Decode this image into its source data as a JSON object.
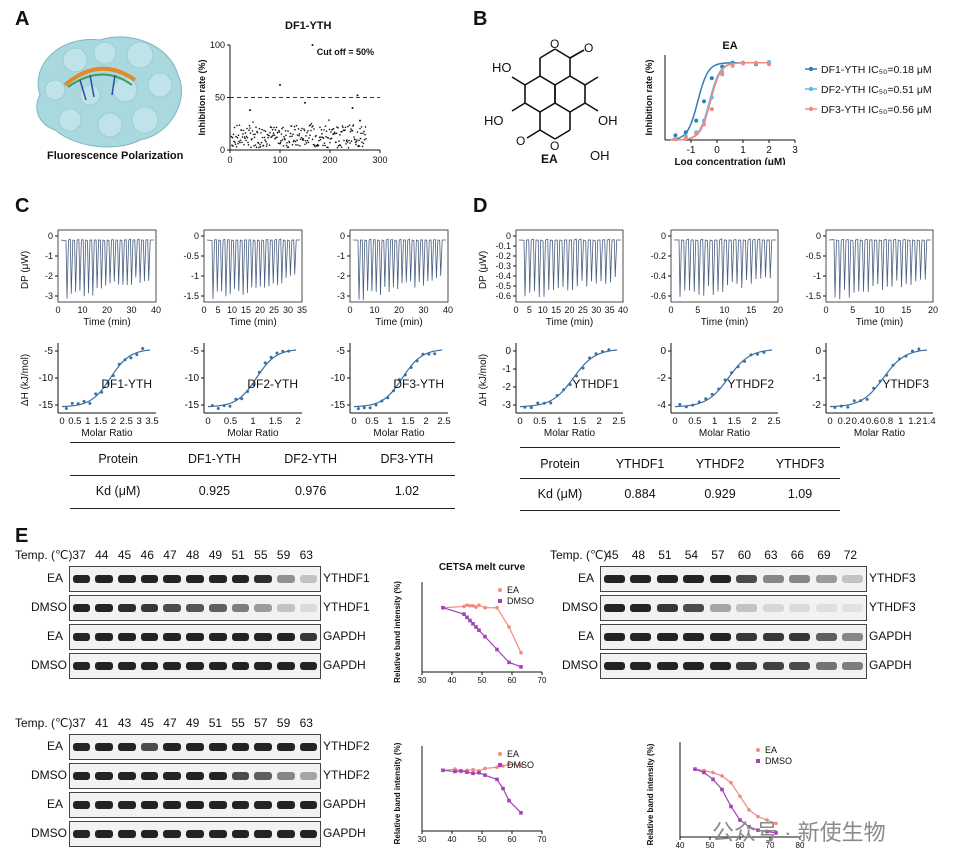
{
  "panels": {
    "a": "A",
    "b": "B",
    "c": "C",
    "d": "D",
    "e": "E"
  },
  "panelA": {
    "caption": "Fluorescence Polarization",
    "chart_data": {
      "type": "scatter",
      "title": "DF1-YTH",
      "ylabel": "Inhibition rate (%)",
      "xlabel": "",
      "xlim": [
        0,
        300
      ],
      "ylim": [
        0,
        100
      ],
      "x_ticks": [
        "0",
        "100",
        "200",
        "300"
      ],
      "y_ticks": [
        "0",
        "50",
        "100"
      ],
      "annotation": "Cut off = 50%",
      "cutoff": 50,
      "outliers": [
        [
          40,
          38
        ],
        [
          100,
          62
        ],
        [
          150,
          45
        ],
        [
          165,
          100
        ],
        [
          245,
          40
        ],
        [
          255,
          52
        ],
        [
          260,
          28
        ]
      ],
      "points_range": "n≈270 values between 0 and 30"
    }
  },
  "panelB": {
    "molecule_label": "EA",
    "groups": [
      "HO",
      "HO",
      "OH",
      "OH",
      "O",
      "O",
      "O",
      "O"
    ],
    "chart_data": {
      "type": "line",
      "title": "EA",
      "xlabel": "Log concentration (μM)",
      "ylabel": "Inhibition rate (%)",
      "xlim": [
        -2,
        3
      ],
      "x_ticks": [
        "-1",
        "0",
        "1",
        "2",
        "3"
      ],
      "series": [
        {
          "name": "DF1-YTH IC₅₀=0.18 μM",
          "color": "#2f7fb5",
          "ic50_log": -0.74,
          "x": [
            -1.6,
            -1.2,
            -0.8,
            -0.5,
            -0.2,
            0.2,
            0.6,
            1.0,
            1.5,
            2.0
          ],
          "y": [
            6,
            10,
            25,
            50,
            80,
            95,
            100,
            100,
            98,
            100
          ]
        },
        {
          "name": "DF2-YTH IC₅₀=0.51 μM",
          "color": "#5bbde6",
          "ic50_log": -0.29,
          "x": [
            -1.6,
            -1.2,
            -0.8,
            -0.5,
            -0.2,
            0.2,
            0.6,
            1.0,
            1.5,
            2.0
          ],
          "y": [
            2,
            5,
            10,
            25,
            55,
            88,
            98,
            100,
            99,
            101
          ]
        },
        {
          "name": "DF3-YTH IC₅₀=0.56 μM",
          "color": "#ef8b80",
          "ic50_log": -0.25,
          "x": [
            -1.6,
            -1.2,
            -0.8,
            -0.5,
            -0.2,
            0.2,
            0.6,
            1.0,
            1.5,
            2.0
          ],
          "y": [
            1,
            3,
            8,
            20,
            40,
            85,
            96,
            99,
            100,
            98
          ]
        }
      ]
    }
  },
  "panelC": {
    "itc": [
      {
        "name": "DF1-YTH",
        "dp_ticks": [
          "0",
          "-1",
          "-2",
          "-3"
        ],
        "time_ticks": [
          "0",
          "10",
          "20",
          "30",
          "40"
        ],
        "time_label": "Time (min)",
        "mr_ticks": [
          "0",
          "0.5",
          "1",
          "1.5",
          "2",
          "2.5",
          "3",
          "3.5"
        ],
        "dh_ticks": [
          "-5",
          "-10",
          "-15"
        ],
        "mr_label": "Molar Ratio"
      },
      {
        "name": "DF2-YTH",
        "dp_ticks": [
          "0",
          "-0.5",
          "-1",
          "-1.5"
        ],
        "time_ticks": [
          "0",
          "5",
          "10",
          "15",
          "20",
          "25",
          "30",
          "35"
        ],
        "time_label": "Time (min)",
        "mr_ticks": [
          "0",
          "0.5",
          "1",
          "1.5",
          "2"
        ],
        "dh_ticks": [
          "-5",
          "-10",
          "-15"
        ],
        "mr_label": "Molar Ratio"
      },
      {
        "name": "DF3-YTH",
        "dp_ticks": [
          "0",
          "-1",
          "-2",
          "-3"
        ],
        "time_ticks": [
          "0",
          "10",
          "20",
          "30",
          "40"
        ],
        "time_label": "Time (min)",
        "mr_ticks": [
          "0",
          "0.5",
          "1",
          "1.5",
          "2",
          "2.5"
        ],
        "dh_ticks": [
          "-5",
          "-10",
          "-15"
        ],
        "mr_label": "Molar Ratio"
      }
    ],
    "dp_axis_label": "DP (μW)",
    "dh_axis_label": "ΔH (kJ/mol)",
    "table": {
      "headers": [
        "Protein",
        "DF1-YTH",
        "DF2-YTH",
        "DF3-YTH"
      ],
      "row_label": "Kd (μM)",
      "values": [
        "0.925",
        "0.976",
        "1.02"
      ]
    }
  },
  "panelD": {
    "itc": [
      {
        "name": "YTHDF1",
        "dp_ticks": [
          "0",
          "-0.1",
          "-0.2",
          "-0.3",
          "-0.4",
          "-0.5",
          "-0.6"
        ],
        "time_ticks": [
          "0",
          "5",
          "10",
          "15",
          "20",
          "25",
          "30",
          "35",
          "40"
        ],
        "time_label": "Time (min)",
        "mr_ticks": [
          "0",
          "0.5",
          "1",
          "1.5",
          "2",
          "2.5"
        ],
        "dh_ticks": [
          "0",
          "-1",
          "-2",
          "-3"
        ],
        "mr_label": "Molar Ratio"
      },
      {
        "name": "YTHDF2",
        "dp_ticks": [
          "0",
          "-0.2",
          "-0.4",
          "-0.6"
        ],
        "time_ticks": [
          "0",
          "5",
          "10",
          "15",
          "20"
        ],
        "time_label": "Time (min)",
        "mr_ticks": [
          "0",
          "0.5",
          "1",
          "1.5",
          "2",
          "2.5"
        ],
        "dh_ticks": [
          "0",
          "-2",
          "-4"
        ],
        "mr_label": "Molar Ratio"
      },
      {
        "name": "YTHDF3",
        "dp_ticks": [
          "0",
          "-0.5",
          "-1",
          "-1.5"
        ],
        "time_ticks": [
          "0",
          "5",
          "10",
          "15",
          "20"
        ],
        "time_label": "Time (min)",
        "mr_ticks": [
          "0",
          "0.2",
          "0.4",
          "0.6",
          "0.8",
          "1",
          "1.2",
          "1.4"
        ],
        "dh_ticks": [
          "0",
          "-1",
          "-2"
        ],
        "mr_label": "Molar Ratio"
      }
    ],
    "dp_axis_label": "DP (μW)",
    "dh_axis_label": "ΔH (kJ/mol)",
    "table": {
      "headers": [
        "Protein",
        "YTHDF1",
        "YTHDF2",
        "YTHDF3"
      ],
      "row_label": "Kd (μM)",
      "values": [
        "0.884",
        "0.929",
        "1.09"
      ]
    }
  },
  "panelE": {
    "temp_label": "Temp. (℃)",
    "blot1": {
      "temps": [
        "37",
        "44",
        "45",
        "46",
        "47",
        "48",
        "49",
        "51",
        "55",
        "59",
        "63"
      ],
      "rows": [
        {
          "treat": "EA",
          "protein": "YTHDF1",
          "levels": [
            1,
            1,
            1,
            1,
            1,
            1,
            1,
            1,
            0.95,
            0.45,
            0.2
          ]
        },
        {
          "treat": "DMSO",
          "protein": "YTHDF1",
          "levels": [
            1,
            1,
            0.95,
            0.9,
            0.8,
            0.75,
            0.7,
            0.55,
            0.4,
            0.2,
            0.08
          ]
        },
        {
          "treat": "EA",
          "protein": "GAPDH",
          "levels": [
            1,
            1,
            1,
            1,
            1,
            1,
            1,
            1,
            1,
            1,
            0.9
          ]
        },
        {
          "treat": "DMSO",
          "protein": "GAPDH",
          "levels": [
            1,
            1,
            1,
            1,
            1,
            1,
            1,
            1,
            1,
            1,
            1
          ]
        }
      ]
    },
    "blot2": {
      "temps": [
        "37",
        "41",
        "43",
        "45",
        "47",
        "49",
        "51",
        "55",
        "57",
        "59",
        "63"
      ],
      "rows": [
        {
          "treat": "EA",
          "protein": "YTHDF2",
          "levels": [
            1,
            1,
            1,
            0.8,
            1,
            1,
            1,
            1,
            1,
            1,
            1
          ]
        },
        {
          "treat": "DMSO",
          "protein": "YTHDF2",
          "levels": [
            1,
            1,
            1,
            1,
            1,
            1,
            1,
            0.8,
            0.7,
            0.5,
            0.35
          ]
        },
        {
          "treat": "EA",
          "protein": "GAPDH",
          "levels": [
            1,
            1,
            1,
            1,
            1,
            1,
            1,
            1,
            1,
            1,
            1
          ]
        },
        {
          "treat": "DMSO",
          "protein": "GAPDH",
          "levels": [
            1,
            1,
            1,
            1,
            1,
            1,
            1,
            1,
            1,
            1,
            1
          ]
        }
      ]
    },
    "blot3": {
      "temps": [
        "45",
        "48",
        "51",
        "54",
        "57",
        "60",
        "63",
        "66",
        "69",
        "72"
      ],
      "rows": [
        {
          "treat": "EA",
          "protein": "YTHDF3",
          "levels": [
            1,
            1,
            1,
            1,
            1,
            0.8,
            0.5,
            0.5,
            0.4,
            0.2
          ]
        },
        {
          "treat": "DMSO",
          "protein": "YTHDF3",
          "levels": [
            1,
            1,
            0.9,
            0.8,
            0.35,
            0.2,
            0.1,
            0.08,
            0.06,
            0.05
          ]
        },
        {
          "treat": "EA",
          "protein": "GAPDH",
          "levels": [
            1,
            1,
            1,
            1,
            1,
            0.9,
            0.9,
            0.9,
            0.7,
            0.5
          ]
        },
        {
          "treat": "DMSO",
          "protein": "GAPDH",
          "levels": [
            1,
            1,
            1,
            1,
            1,
            0.9,
            0.85,
            0.8,
            0.6,
            0.55
          ]
        }
      ]
    },
    "melt1": {
      "type": "line",
      "title": "CETSA melt curve",
      "ylabel": "Relative band intensity (%)",
      "xlim": [
        30,
        70
      ],
      "x_ticks": [
        "30",
        "40",
        "50",
        "60",
        "70"
      ],
      "series": [
        {
          "name": "EA",
          "color": "#f08a80",
          "x": [
            37,
            44,
            45,
            46,
            47,
            48,
            49,
            51,
            55,
            59,
            63
          ],
          "y": [
            100,
            102,
            104,
            103,
            103,
            101,
            104,
            100,
            100,
            70,
            30
          ]
        },
        {
          "name": "DMSO",
          "color": "#a442b8",
          "x": [
            37,
            44,
            45,
            46,
            47,
            48,
            49,
            51,
            55,
            59,
            63
          ],
          "y": [
            100,
            90,
            85,
            80,
            75,
            70,
            65,
            55,
            35,
            15,
            8
          ]
        }
      ]
    },
    "melt2": {
      "type": "line",
      "ylabel": "Relative band intensity (%)",
      "xlim": [
        30,
        70
      ],
      "x_ticks": [
        "30",
        "40",
        "50",
        "60",
        "70"
      ],
      "series": [
        {
          "name": "EA",
          "color": "#f08a80",
          "x": [
            37,
            41,
            43,
            45,
            47,
            49,
            51,
            55,
            57,
            59,
            63
          ],
          "y": [
            100,
            102,
            98,
            100,
            101,
            99,
            103,
            105,
            107,
            110,
            108
          ]
        },
        {
          "name": "DMSO",
          "color": "#a442b8",
          "x": [
            37,
            41,
            43,
            45,
            47,
            49,
            51,
            55,
            57,
            59,
            63
          ],
          "y": [
            100,
            98,
            99,
            97,
            95,
            96,
            92,
            85,
            70,
            50,
            30
          ]
        }
      ]
    },
    "melt3": {
      "type": "line",
      "ylabel": "Relative band intensity (%)",
      "xlim": [
        40,
        80
      ],
      "x_ticks": [
        "40",
        "50",
        "60",
        "70",
        "80"
      ],
      "series": [
        {
          "name": "EA",
          "color": "#f08a80",
          "x": [
            45,
            48,
            51,
            54,
            57,
            60,
            63,
            66,
            69,
            72
          ],
          "y": [
            100,
            98,
            95,
            90,
            80,
            60,
            40,
            30,
            25,
            20
          ]
        },
        {
          "name": "DMSO",
          "color": "#a442b8",
          "x": [
            45,
            48,
            51,
            54,
            57,
            60,
            63,
            66,
            69,
            72
          ],
          "y": [
            100,
            95,
            85,
            70,
            45,
            25,
            15,
            10,
            8,
            6
          ]
        }
      ]
    }
  },
  "watermark": {
    "prefix": "公众号 ·",
    "name": "新使生物"
  }
}
